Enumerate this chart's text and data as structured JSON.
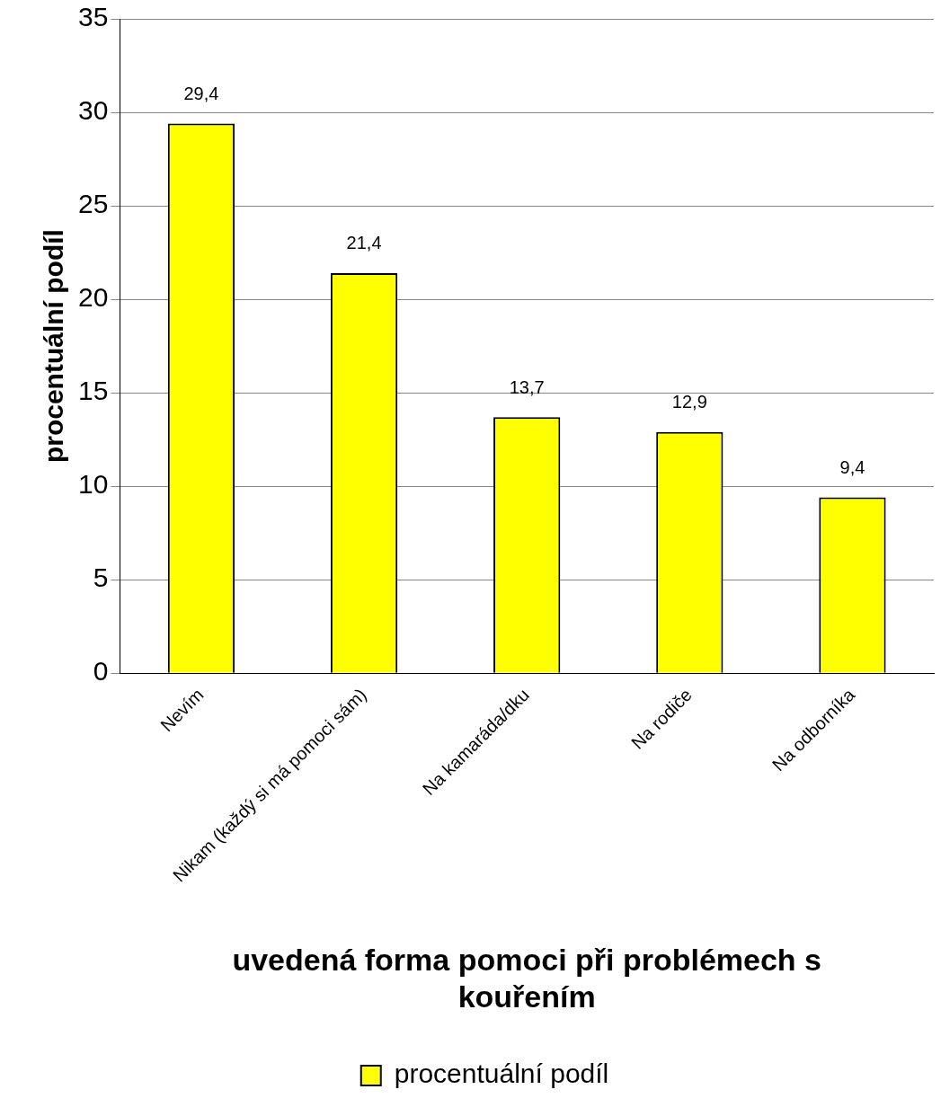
{
  "chart_data": {
    "type": "bar",
    "xlabel": "uvedená forma pomoci při problémech s kouřením",
    "ylabel": "procentuální podíl",
    "categories": [
      "Nevím",
      "Nikam (každý si má pomoci sám)",
      "Na kamaráda/dku",
      "Na rodiče",
      "Na odborníka"
    ],
    "series": [
      {
        "name": "procentuální podíl",
        "color": "#ffff00",
        "values": [
          29.4,
          21.4,
          13.7,
          12.9,
          9.4
        ],
        "value_labels": [
          "29,4",
          "21,4",
          "13,7",
          "12,9",
          "9,4"
        ]
      }
    ],
    "ylim": [
      0,
      35
    ],
    "yticks": [
      0,
      5,
      10,
      15,
      20,
      25,
      30,
      35
    ],
    "grid": "y",
    "legend": "bottom"
  }
}
